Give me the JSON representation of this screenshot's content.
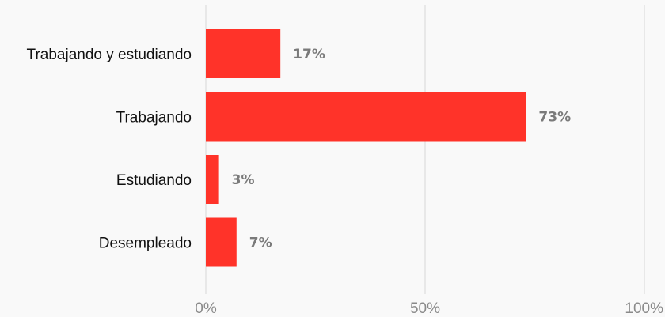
{
  "chart_data": {
    "type": "bar",
    "orientation": "horizontal",
    "categories": [
      "Trabajando y estudiando",
      "Trabajando",
      "Estudiando",
      "Desempleado"
    ],
    "values": [
      17,
      73,
      3,
      7
    ],
    "data_labels": [
      "17%",
      "73%",
      "3%",
      "7%"
    ],
    "xlim": [
      0,
      100
    ],
    "x_ticks": [
      0,
      50,
      100
    ],
    "x_tick_labels": [
      "0%",
      "50%",
      "100%"
    ],
    "grid": true,
    "legend": "none",
    "bar_color": "#ff3329"
  }
}
